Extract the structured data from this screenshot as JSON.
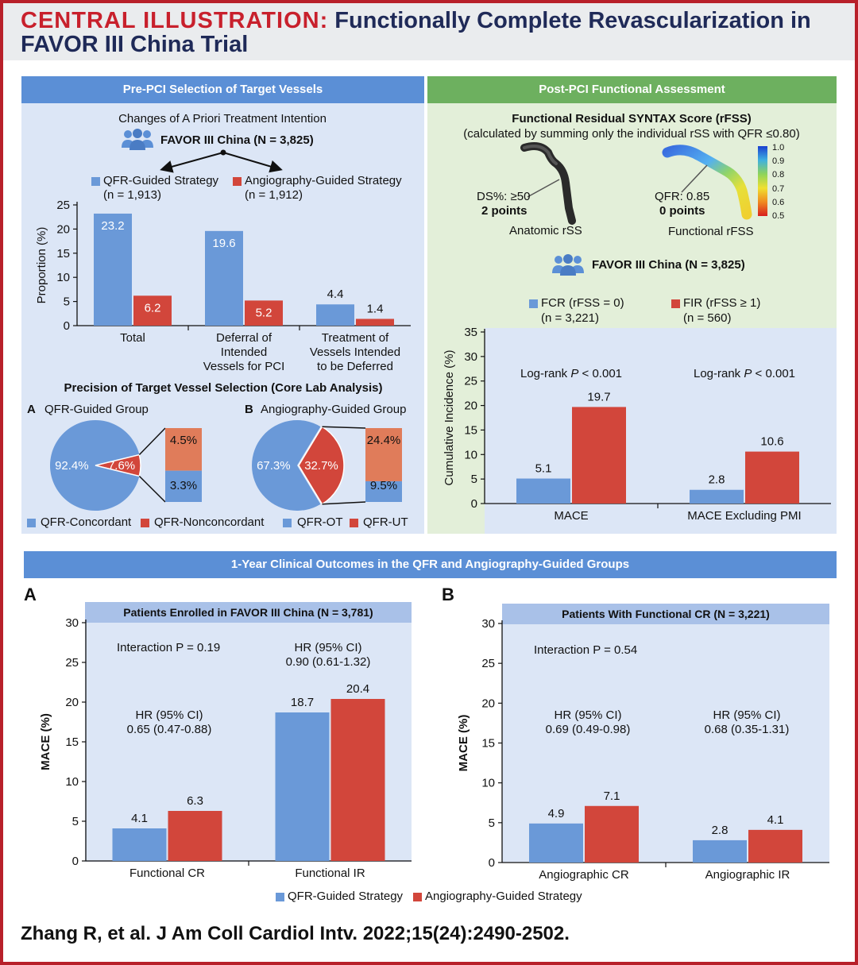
{
  "title": {
    "label": "CENTRAL ILLUSTRATION:",
    "text_line1": "Functionally Complete Revascularization in",
    "text_line2": "FAVOR III China Trial"
  },
  "colors": {
    "blue": "#6a99d8",
    "red": "#d2463b",
    "light_red": "#e07c5a",
    "header_blue": "#5b8fd6",
    "header_green": "#6db05f",
    "panel_bg_blue": "#dce6f6",
    "panel_bg_green": "#e3efd9",
    "frame_red": "#b8202a"
  },
  "pre_pci": {
    "header": "Pre-PCI Selection of Target Vessels",
    "subtitle": "Changes of A Priori Treatment Intention",
    "trial": "FAVOR III China (N = 3,825)",
    "legend": [
      {
        "label": "QFR-Guided Strategy",
        "n": "(n = 1,913)",
        "color": "blue"
      },
      {
        "label": "Angiography-Guided Strategy",
        "n": "(n = 1,912)",
        "color": "red"
      }
    ],
    "precision_title": "Precision of Target Vessel Selection (Core Lab Analysis)",
    "pieA": {
      "letter": "A",
      "title": "QFR-Guided Group",
      "slices": [
        {
          "label": "92.4%",
          "value": 92.4
        },
        {
          "label": "7.6%",
          "value": 7.6
        }
      ],
      "breakdown": [
        {
          "label": "4.5%",
          "value": 4.5
        },
        {
          "label": "3.3%",
          "value": 3.3
        }
      ],
      "legend": [
        "QFR-Concordant",
        "QFR-Nonconcordant"
      ]
    },
    "pieB": {
      "letter": "B",
      "title": "Angiography-Guided Group",
      "slices": [
        {
          "label": "67.3%",
          "value": 67.3
        },
        {
          "label": "32.7%",
          "value": 32.7
        }
      ],
      "breakdown": [
        {
          "label": "24.4%",
          "value": 24.4
        },
        {
          "label": "9.5%",
          "value": 9.5
        }
      ],
      "legend": [
        "QFR-OT",
        "QFR-UT"
      ]
    }
  },
  "post_pci": {
    "header": "Post-PCI Functional Assessment",
    "rfss_title": "Functional Residual SYNTAX Score (rFSS)",
    "rfss_subtitle": "(calculated by summing only the individual rSS with QFR ≤0.80)",
    "anatomic": {
      "line1": "DS%: ≥50",
      "line2": "2 points",
      "caption": "Anatomic rSS"
    },
    "functional": {
      "line1": "QFR: 0.85",
      "line2": "0 points",
      "caption": "Functional rFSS"
    },
    "colorbar_ticks": [
      "1.0",
      "0.9",
      "0.8",
      "0.7",
      "0.6",
      "0.5"
    ],
    "trial": "FAVOR III China (N = 3,825)",
    "legend": [
      {
        "label": "FCR (rFSS = 0)",
        "n": "(n = 3,221)",
        "color": "blue"
      },
      {
        "label": "FIR (rFSS ≥ 1)",
        "n": "(n = 560)",
        "color": "red"
      }
    ]
  },
  "outcomes": {
    "header": "1-Year Clinical Outcomes in the QFR and Angiography-Guided Groups",
    "panelA": {
      "letter": "A",
      "title": "Patients Enrolled in FAVOR III China (N = 3,781)",
      "interaction": "Interaction P = 0.19",
      "hr": [
        {
          "line1": "HR (95% CI)",
          "line2": "0.65 (0.47-0.88)"
        },
        {
          "line1": "HR (95% CI)",
          "line2": "0.90 (0.61-1.32)"
        }
      ]
    },
    "panelB": {
      "letter": "B",
      "title": "Patients With Functional CR (N = 3,221)",
      "interaction": "Interaction P = 0.54",
      "hr": [
        {
          "line1": "HR (95% CI)",
          "line2": "0.69 (0.49-0.98)"
        },
        {
          "line1": "HR (95% CI)",
          "line2": "0.68 (0.35-1.31)"
        }
      ]
    },
    "legend": [
      "QFR-Guided Strategy",
      "Angiography-Guided Strategy"
    ]
  },
  "citation": "Zhang R, et al. J Am Coll Cardiol Intv. 2022;15(24):2490-2502.",
  "chart_data": [
    {
      "type": "bar",
      "title": "Changes of A Priori Treatment Intention",
      "categories": [
        [
          "Total"
        ],
        [
          "Deferral of",
          "Intended",
          "Vessels for PCI"
        ],
        [
          "Treatment of",
          "Vessels Intended",
          "to be Deferred"
        ]
      ],
      "series": [
        {
          "name": "QFR-Guided Strategy",
          "values": [
            23.2,
            19.6,
            4.4
          ],
          "labels": [
            "23.2",
            "19.6",
            "4.4"
          ]
        },
        {
          "name": "Angiography-Guided Strategy",
          "values": [
            6.2,
            5.2,
            1.4
          ],
          "labels": [
            "6.2",
            "5.2",
            "1.4"
          ]
        }
      ],
      "ylabel": "Proportion (%)",
      "ylim": [
        0,
        25
      ],
      "yticks": [
        "0",
        "5",
        "10",
        "15",
        "20",
        "25"
      ]
    },
    {
      "type": "bar",
      "title": "Cumulative Incidence",
      "categories": [
        [
          "MACE"
        ],
        [
          "MACE Excluding PMI"
        ]
      ],
      "series": [
        {
          "name": "FCR (rFSS = 0)",
          "values": [
            5.1,
            2.8
          ],
          "labels": [
            "5.1",
            "2.8"
          ]
        },
        {
          "name": "FIR (rFSS ≥ 1)",
          "values": [
            19.7,
            10.6
          ],
          "labels": [
            "19.7",
            "10.6"
          ]
        }
      ],
      "ylabel": "Cumulative Incidence (%)",
      "ylim": [
        0,
        35
      ],
      "yticks": [
        "0",
        "5",
        "10",
        "15",
        "20",
        "25",
        "30",
        "35"
      ],
      "annotations": [
        "Log-rank P < 0.001",
        "Log-rank P < 0.001"
      ]
    },
    {
      "type": "bar",
      "title": "Patients Enrolled in FAVOR III China (N = 3,781)",
      "categories": [
        [
          "Functional CR"
        ],
        [
          "Functional IR"
        ]
      ],
      "series": [
        {
          "name": "QFR-Guided Strategy",
          "values": [
            4.1,
            18.7
          ],
          "labels": [
            "4.1",
            "18.7"
          ]
        },
        {
          "name": "Angiography-Guided Strategy",
          "values": [
            6.3,
            20.4
          ],
          "labels": [
            "6.3",
            "20.4"
          ]
        }
      ],
      "ylabel": "MACE (%)",
      "ylim": [
        0,
        30
      ],
      "yticks": [
        "0",
        "5",
        "10",
        "15",
        "20",
        "25",
        "30"
      ]
    },
    {
      "type": "bar",
      "title": "Patients With Functional CR (N = 3,221)",
      "categories": [
        [
          "Angiographic CR"
        ],
        [
          "Angiographic IR"
        ]
      ],
      "series": [
        {
          "name": "QFR-Guided Strategy",
          "values": [
            4.9,
            2.8
          ],
          "labels": [
            "4.9",
            "2.8"
          ]
        },
        {
          "name": "Angiography-Guided Strategy",
          "values": [
            7.1,
            4.1
          ],
          "labels": [
            "7.1",
            "4.1"
          ]
        }
      ],
      "ylabel": "MACE (%)",
      "ylim": [
        0,
        30
      ],
      "yticks": [
        "0",
        "5",
        "10",
        "15",
        "20",
        "25",
        "30"
      ]
    }
  ]
}
